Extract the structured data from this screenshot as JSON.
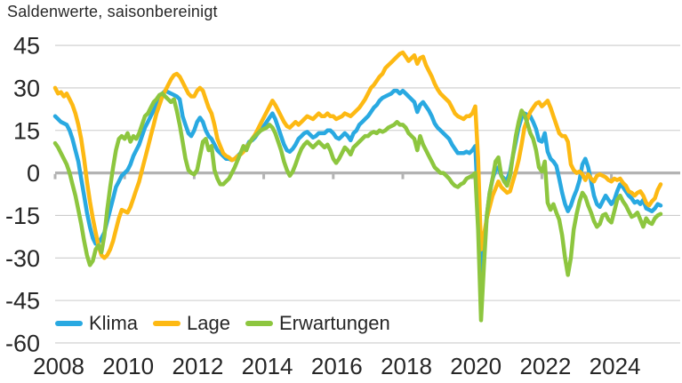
{
  "title": "Saldenwerte, saisonbereinigt",
  "colors": {
    "background": "#ffffff",
    "grid_line": "#cccccc",
    "zero_line": "#b3b3b3",
    "axis_text": "#262626",
    "title_text": "#282828",
    "klima": "#29a9e1",
    "lage": "#fdb913",
    "erwartungen": "#8dc63f"
  },
  "chart_data": {
    "type": "line",
    "title": "Saldenwerte, saisonbereinigt",
    "frequency": "monthly",
    "x_start": "2008-01",
    "x_end": "2025-06",
    "x_tick_labels": [
      "2008",
      "2010",
      "2012",
      "2014",
      "2016",
      "2018",
      "2020",
      "2022",
      "2024"
    ],
    "y_ticks": [
      45,
      30,
      15,
      0,
      -15,
      -30,
      -45,
      -60
    ],
    "ylim": [
      -60,
      45
    ],
    "grid": "horizontal",
    "zero_line_emphasized": true,
    "legend_position": "bottom-left-inside",
    "series": [
      {
        "name": "Klima",
        "color": "#29a9e1",
        "values": [
          20,
          19,
          18,
          17.5,
          17,
          15,
          12,
          8,
          4,
          -2,
          -8,
          -14,
          -19,
          -23,
          -25,
          -24.5,
          -23,
          -21,
          -17,
          -13,
          -9,
          -5,
          -3,
          -1,
          0,
          1,
          3,
          6,
          8,
          10,
          13,
          16,
          18,
          20,
          22,
          24,
          26,
          28,
          29,
          28.5,
          28,
          27.5,
          27,
          26,
          20,
          17,
          14,
          13,
          15,
          18,
          19.5,
          18,
          15,
          13,
          12,
          10,
          8,
          7,
          6,
          5,
          5,
          4.5,
          5,
          6,
          7,
          8.5,
          9,
          11,
          11.5,
          12.5,
          14,
          15,
          16.5,
          18,
          19.5,
          21,
          19,
          16,
          13,
          10,
          8,
          7.5,
          8.5,
          10,
          12,
          13,
          14,
          14.5,
          13.5,
          12.5,
          13,
          14,
          14,
          14,
          15,
          15,
          14,
          12.5,
          12,
          13,
          14,
          13,
          11.5,
          14,
          15,
          17,
          18,
          19,
          20,
          21.5,
          23,
          24,
          25.5,
          26.5,
          27,
          27.5,
          28,
          29,
          29,
          28,
          29,
          28,
          27,
          26,
          25,
          21.5,
          24,
          25,
          23.5,
          22,
          20,
          17.5,
          16,
          15,
          14,
          13,
          12,
          10,
          8.5,
          7,
          7,
          7,
          7.5,
          7,
          8,
          9.5,
          -12,
          -38,
          -27,
          -15,
          -7,
          -2,
          1,
          2,
          -1,
          -2,
          -2.5,
          0.5,
          6,
          11,
          16,
          19.5,
          21,
          20.5,
          20,
          18,
          15.5,
          11.5,
          11,
          14,
          7.5,
          5,
          4,
          2.5,
          -2,
          -7,
          -11,
          -13.5,
          -11.5,
          -8.5,
          -6,
          -2.5,
          3,
          5,
          2,
          -3,
          -8,
          -11,
          -12,
          -10,
          -8,
          -9.5,
          -11,
          -9.5,
          -6.5,
          -4,
          -5,
          -6.5,
          -8,
          -9,
          -10.5,
          -10,
          -11,
          -9.5,
          -12.5,
          -13,
          -13.5,
          -12.5,
          -11,
          -11.5
        ]
      },
      {
        "name": "Lage",
        "color": "#fdb913",
        "values": [
          30,
          28,
          28.5,
          27,
          28,
          26,
          24,
          21,
          17,
          12,
          5,
          -3,
          -10,
          -16,
          -21,
          -26,
          -29,
          -30,
          -29,
          -27,
          -24,
          -20,
          -16,
          -13,
          -13.5,
          -14,
          -12,
          -9,
          -6,
          -3,
          1,
          5,
          9,
          13,
          17,
          21,
          24,
          27,
          29,
          31,
          33,
          34.5,
          35,
          34,
          32,
          30,
          28,
          27,
          27,
          29,
          30,
          29,
          26,
          23,
          21,
          17,
          12,
          9.5,
          7,
          6,
          5.5,
          4.5,
          5,
          6,
          6.5,
          7.5,
          9,
          10.5,
          12,
          13.5,
          15.5,
          17.5,
          19.5,
          21.5,
          23.5,
          25.5,
          24,
          22,
          20,
          18,
          16.5,
          16,
          17,
          18,
          17,
          18,
          19,
          20,
          19.5,
          19,
          20,
          21,
          20,
          20,
          21,
          20,
          20,
          19,
          19.5,
          20,
          21,
          20.5,
          20,
          21,
          22,
          23,
          24.5,
          26,
          28,
          30,
          31,
          32.5,
          34,
          35,
          37,
          38,
          39,
          40,
          41,
          42,
          42.5,
          41,
          39.5,
          40.5,
          41.5,
          38.5,
          40.5,
          41,
          38,
          36,
          34,
          31.5,
          29.5,
          28,
          27,
          26,
          25,
          23,
          21,
          20,
          19.5,
          19,
          20,
          20,
          21,
          23.5,
          5,
          -27,
          -22,
          -16,
          -12,
          -8,
          -5.5,
          -3,
          -5,
          -6,
          -7,
          -6.5,
          -3,
          0.5,
          4.5,
          10,
          16,
          19,
          21.5,
          23,
          24.5,
          25,
          23.5,
          24.5,
          25.5,
          23,
          20,
          17,
          14,
          13,
          13,
          11,
          3,
          1,
          0,
          0.5,
          -0.5,
          -2.5,
          -0.5,
          -2,
          -3,
          -1,
          -0.5,
          -1,
          -1.5,
          -2.5,
          -3,
          -2,
          -2.5,
          -2,
          -3.5,
          -4.5,
          -6.5,
          -7,
          -8,
          -7,
          -6.5,
          -8,
          -10.5,
          -11.5,
          -10,
          -9,
          -6,
          -4
        ]
      },
      {
        "name": "Erwartungen",
        "color": "#8dc63f",
        "values": [
          10.5,
          9,
          7,
          5,
          3,
          0,
          -4,
          -8,
          -13,
          -18,
          -24,
          -29,
          -32.5,
          -31,
          -27,
          -25.5,
          -28,
          -22,
          -13,
          -5,
          2,
          8,
          12,
          13,
          12,
          14,
          11,
          13,
          12,
          14,
          17,
          20,
          21,
          23,
          25,
          26,
          27.5,
          28,
          27,
          26,
          25,
          26,
          22,
          17,
          11,
          5,
          1,
          0,
          -0.5,
          1,
          6,
          11,
          12,
          8,
          9.5,
          1,
          -2,
          -4,
          -4,
          -3,
          -2,
          0,
          2,
          4.5,
          7,
          9.5,
          8,
          10.5,
          12,
          13,
          14,
          15,
          15.5,
          16,
          17,
          16,
          14,
          11,
          8,
          4,
          1,
          -1,
          0.5,
          3,
          6,
          8.5,
          10,
          11,
          10,
          9,
          10,
          11,
          10,
          9,
          10,
          8,
          5,
          3.5,
          5,
          7,
          9,
          8,
          6.5,
          9,
          10,
          11,
          12,
          13,
          13,
          14,
          14.5,
          14,
          15,
          14.5,
          15,
          16,
          16.5,
          17,
          18,
          17,
          17,
          16,
          14,
          13,
          12,
          8,
          13,
          10,
          8,
          6,
          4,
          2,
          1,
          0,
          0,
          -1,
          -2,
          -3.5,
          -4.5,
          -5,
          -4,
          -3.5,
          -2,
          -1.5,
          -1,
          0,
          -20,
          -52,
          -33,
          -15,
          -7,
          -2,
          4,
          5.5,
          -1,
          -3,
          -4.5,
          -1,
          6,
          13,
          18,
          22,
          20.5,
          17.5,
          14,
          12,
          8,
          2,
          0.5,
          4,
          -10.5,
          -13,
          -11,
          -14,
          -16.5,
          -22,
          -30,
          -36,
          -30,
          -20,
          -14.5,
          -10,
          -7,
          -8.5,
          -11.5,
          -14,
          -17,
          -19,
          -18,
          -15,
          -14.5,
          -16.5,
          -17.5,
          -13.5,
          -9.5,
          -8,
          -10,
          -11.5,
          -13.5,
          -15.5,
          -15,
          -14,
          -16.5,
          -19,
          -16,
          -17.5,
          -18,
          -16,
          -15,
          -14.5
        ]
      }
    ]
  }
}
